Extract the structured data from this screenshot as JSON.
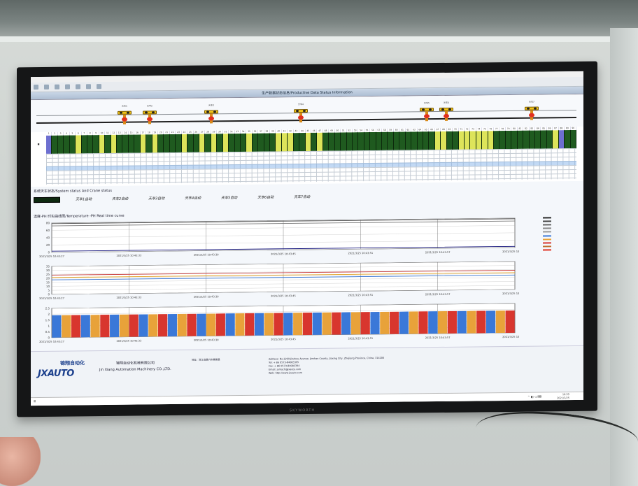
{
  "app": {
    "title": "生产数据状态信息/Productive Data Status Information",
    "toolbar": [
      "",
      "",
      "",
      "",
      "",
      "",
      ""
    ]
  },
  "cranes": [
    {
      "label": "天车1",
      "left": 0
    },
    {
      "label": "天车2",
      "left": 0
    },
    {
      "label": "天车3",
      "left": 0
    },
    {
      "label": "天车4",
      "left": 0
    },
    {
      "label": "天车5",
      "left": 0
    },
    {
      "label": "天车6",
      "left": 0
    },
    {
      "label": "天车7",
      "left": 0
    }
  ],
  "system_status": {
    "title": "系统天车状态/System status And Crane status",
    "cranes": [
      "天车1自动",
      "天车2自动",
      "天车3自动",
      "天车4自动",
      "天车5自动",
      "天车6自动",
      "天车7自动"
    ]
  },
  "curve": {
    "title": "温度-PH 时实曲线图/Temperature -PH Real time curve"
  },
  "charts": {
    "chart1_xticks": [
      "2021/3/25 10:43:27",
      "2021/3/25 10:43:33",
      "2021/3/25 10:43:39",
      "2021/3/25 10:43:45",
      "2021/3/25 10:43:51",
      "2021/3/25 10:43:57",
      "2021/3/25 10:44:03"
    ],
    "chart1_yticks": [
      "80",
      "60",
      "40",
      "20",
      "0"
    ],
    "chart2_xticks": [
      "2021/3/25 10:43:27",
      "2021/3/25 10:43:33",
      "2021/3/25 10:43:39",
      "2021/3/25 10:43:45",
      "2021/3/25 10:43:51",
      "2021/3/25 10:43:57",
      "2021/3/25 10:44:03"
    ],
    "chart2_yticks": [
      "35",
      "30",
      "25",
      "20",
      "15",
      "10",
      "5",
      "0"
    ],
    "chart3_xticks": [
      "2021/3/25 10:43:27",
      "2021/3/25 10:43:33",
      "2021/3/25 10:43:39",
      "2021/3/25 10:43:45",
      "2021/3/25 10:43:51",
      "2021/3/25 10:43:57",
      "2021/3/25 10:44:03"
    ],
    "chart3_yticks": [
      "2.5",
      "2",
      "1.5",
      "1",
      "0.5",
      "0"
    ]
  },
  "chart_data": [
    {
      "type": "line",
      "ylim": [
        0,
        80
      ],
      "series": [
        {
          "values": [
            78,
            78,
            78,
            78,
            78,
            78,
            78
          ],
          "color": "#555555"
        },
        {
          "values": [
            72,
            72,
            72,
            72,
            72,
            72,
            72
          ],
          "color": "#7a7a7a"
        },
        {
          "values": [
            3,
            3,
            3,
            3,
            3,
            3,
            3
          ],
          "color": "#1a1a80"
        }
      ]
    },
    {
      "type": "line",
      "ylim": [
        0,
        35
      ],
      "series": [
        {
          "values": [
            24,
            24,
            24,
            24,
            24,
            24,
            24
          ],
          "color": "#c83a3a"
        },
        {
          "values": [
            21,
            21,
            21,
            21,
            21,
            21,
            21
          ],
          "color": "#e0a020"
        },
        {
          "values": [
            18,
            18,
            18,
            18,
            18,
            18,
            18
          ],
          "color": "#3070d0"
        }
      ]
    },
    {
      "type": "bar",
      "ylim": [
        0,
        2.5
      ],
      "bars": 48,
      "pattern": [
        "#3a78d8",
        "#e8a23a",
        "#d8362e"
      ],
      "value": 1.9
    }
  ],
  "legend": [
    {
      "name": "",
      "color": "#2a2a2a"
    },
    {
      "name": "",
      "color": "#444444"
    },
    {
      "name": "",
      "color": "#666666"
    },
    {
      "name": "",
      "color": "#888888"
    },
    {
      "name": "",
      "color": "#999999"
    },
    {
      "name": "",
      "color": "#3a78d8"
    },
    {
      "name": "",
      "color": "#e8a23a"
    },
    {
      "name": "",
      "color": "#d8362e"
    },
    {
      "name": "",
      "color": "#c07030"
    },
    {
      "name": "",
      "color": "#e03020"
    }
  ],
  "footer": {
    "logo_cn": "锦翔自动化",
    "logo_en": "JXAUTO",
    "company_cn": "锦翔自动化机械有限公司",
    "company_en": "Jin Xiang Automation Machinery CO.,LTD.",
    "addr_cn": "地址：浙江省嘉兴市嘉善县",
    "addr_en": "Address: No.2299 Jinzhou Avenue, Jinshan County, Jiaxing City, Zhejiang Province, China, 314200",
    "tel": "Tel: + 86 0573-84083395",
    "fax": "Fax: + 86 0573-84083394",
    "email": "Email: jxmach@jxauto.com",
    "web": "Web: http://www.jxauto.com"
  },
  "taskbar": {
    "left": "",
    "time": "10:55",
    "date": "2021/3/25"
  },
  "monitor_brand": "SKYWORTH"
}
